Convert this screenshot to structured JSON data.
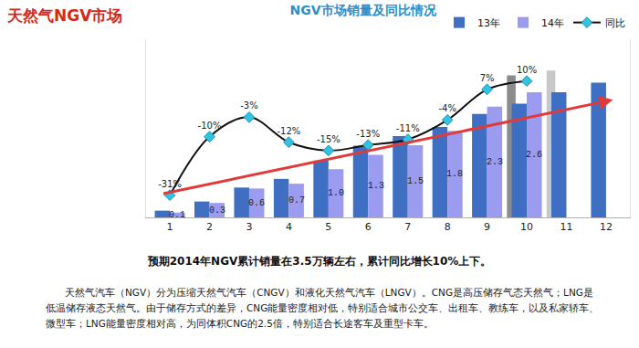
{
  "header": "天然气NGV市场",
  "chart_data": {
    "type": "bar",
    "title": "NGV市场销量及同比情况",
    "categories": [
      "1",
      "2",
      "3",
      "4",
      "5",
      "6",
      "7",
      "8",
      "9",
      "10",
      "11",
      "12"
    ],
    "series": [
      {
        "name": "13年",
        "type": "bar",
        "color": "#3f6fc3",
        "values": [
          0.14,
          0.33,
          0.62,
          0.8,
          1.18,
          1.49,
          1.69,
          1.88,
          2.15,
          2.36,
          2.6,
          2.8
        ]
      },
      {
        "name": "14年",
        "type": "bar",
        "color": "#9b9bf0",
        "values": [
          0.1,
          0.3,
          0.6,
          0.7,
          1.0,
          1.3,
          1.5,
          1.8,
          2.3,
          2.6,
          null,
          null
        ],
        "value_labels": [
          "0.1",
          "0.3",
          "0.6",
          "0.7",
          "1.0",
          "1.3",
          "1.5",
          "1.8",
          "2.3",
          "2.6",
          null,
          null
        ],
        "data_labels": true
      },
      {
        "type": "bar",
        "colors": [
          null,
          null,
          null,
          null,
          null,
          null,
          null,
          null,
          null,
          "#8c8c8c",
          "#c8c8c8",
          null
        ],
        "values": [
          null,
          null,
          null,
          null,
          null,
          null,
          null,
          null,
          null,
          2.95,
          3.05,
          null
        ]
      },
      {
        "name": "同比",
        "type": "line",
        "axis": "y2",
        "color": "#111111",
        "marker": "diamond",
        "line_style": "spline",
        "values": [
          -31,
          -10,
          -3,
          -12,
          -15,
          -13,
          -11,
          -4,
          7,
          10,
          null,
          null
        ],
        "value_labels": [
          "-31%",
          "-10%",
          "-3%",
          "-12%",
          "-15%",
          "-13%",
          "-11%",
          "-4%",
          "7%",
          "10%",
          null,
          null
        ],
        "data_labels": true
      }
    ],
    "ylim": [
      0,
      3.7
    ],
    "yticks": [],
    "y2lim": [
      -39,
      25
    ],
    "y2ticks": [],
    "tick_labels": "x",
    "grid": false,
    "legend": "top"
  },
  "note": "预期2014年NGV累计销量在3.5万辆左右，累计同比增长10%上下。",
  "description": "天然气汽车（NGV）分为压缩天然气汽车（CNGV）和液化天然气汽车（LNGV）。CNG是高压储存气态天然气；LNG是低温储存液态天然气。由于储存方式的差异，CNG能量密度相对低，特别适合城市公交车、出租车、教练车，以及私家轿车、微型车；LNG能量密度相对高，为同体积CNG的2.5倍，特别适合长途客车及重型卡车。"
}
